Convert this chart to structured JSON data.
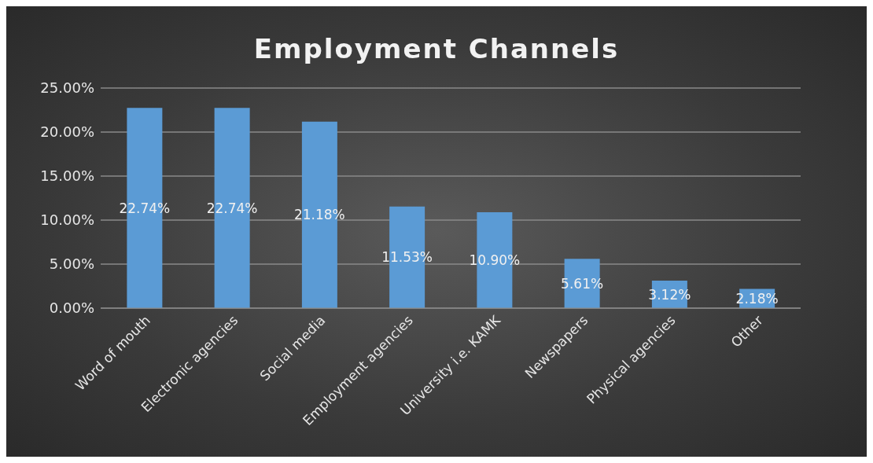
{
  "chart_data": {
    "type": "bar",
    "title": "Employment Channels",
    "categories": [
      "Word of mouth",
      "Electronic agencies",
      "Social media",
      "Employment agencies",
      "University i.e. KAMK",
      "Newspapers",
      "Physical agencies",
      "Other"
    ],
    "values": [
      22.74,
      22.74,
      21.18,
      11.53,
      10.9,
      5.61,
      3.12,
      2.18
    ],
    "value_labels": [
      "22.74%",
      "22.74%",
      "21.18%",
      "11.53%",
      "10.90%",
      "5.61%",
      "3.12%",
      "2.18%"
    ],
    "color": "#5b9bd5",
    "ylim": [
      0,
      25
    ],
    "yticks": [
      {
        "value": 0,
        "label": "0.00%"
      },
      {
        "value": 5,
        "label": "5.00%"
      },
      {
        "value": 10,
        "label": "10.00%"
      },
      {
        "value": 15,
        "label": "15.00%"
      },
      {
        "value": 20,
        "label": "20.00%"
      },
      {
        "value": 25,
        "label": "25.00%"
      }
    ],
    "grid": "y"
  }
}
